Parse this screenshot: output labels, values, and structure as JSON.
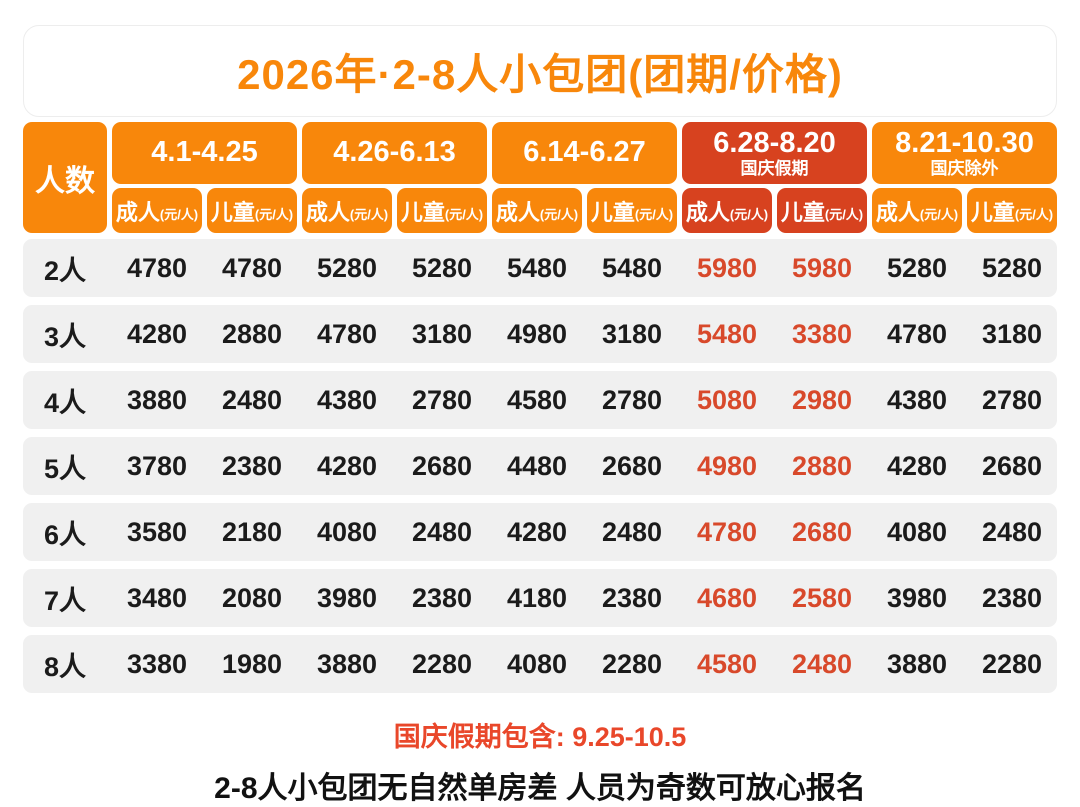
{
  "title": "2026年·2-8人小包团(团期/价格)",
  "colors": {
    "orange": "#F8870B",
    "holiday_red": "#D7421F",
    "price_red": "#D8492B",
    "row_bg": "#F0F0F0",
    "footer_red": "#E9472A",
    "ink": "#1B1B1B"
  },
  "table": {
    "corner_label": "人数",
    "groups": [
      {
        "range": "4.1-4.25",
        "note": "",
        "theme": "orange"
      },
      {
        "range": "4.26-6.13",
        "note": "",
        "theme": "orange"
      },
      {
        "range": "6.14-6.27",
        "note": "",
        "theme": "orange"
      },
      {
        "range": "6.28-8.20",
        "note": "国庆假期",
        "theme": "red"
      },
      {
        "range": "8.21-10.30",
        "note": "国庆除外",
        "theme": "orange"
      }
    ],
    "sub_headers": {
      "adult": "成人",
      "child": "儿童",
      "unit": "(元/人)"
    },
    "rows": [
      {
        "label": "2人",
        "values": [
          4780,
          4780,
          5280,
          5280,
          5480,
          5480,
          5980,
          5980,
          5280,
          5280
        ]
      },
      {
        "label": "3人",
        "values": [
          4280,
          2880,
          4780,
          3180,
          4980,
          3180,
          5480,
          3380,
          4780,
          3180
        ]
      },
      {
        "label": "4人",
        "values": [
          3880,
          2480,
          4380,
          2780,
          4580,
          2780,
          5080,
          2980,
          4380,
          2780
        ]
      },
      {
        "label": "5人",
        "values": [
          3780,
          2380,
          4280,
          2680,
          4480,
          2680,
          4980,
          2880,
          4280,
          2680
        ]
      },
      {
        "label": "6人",
        "values": [
          3580,
          2180,
          4080,
          2480,
          4280,
          2480,
          4780,
          2680,
          4080,
          2480
        ]
      },
      {
        "label": "7人",
        "values": [
          3480,
          2080,
          3980,
          2380,
          4180,
          2380,
          4680,
          2580,
          3980,
          2380
        ]
      },
      {
        "label": "8人",
        "values": [
          3380,
          1980,
          3880,
          2280,
          4080,
          2280,
          4580,
          2480,
          3880,
          2280
        ]
      }
    ]
  },
  "footer": {
    "holiday_note": "国庆假期包含: 9.25-10.5",
    "booking_note": "2-8人小包团无自然单房差 人员为奇数可放心报名"
  }
}
